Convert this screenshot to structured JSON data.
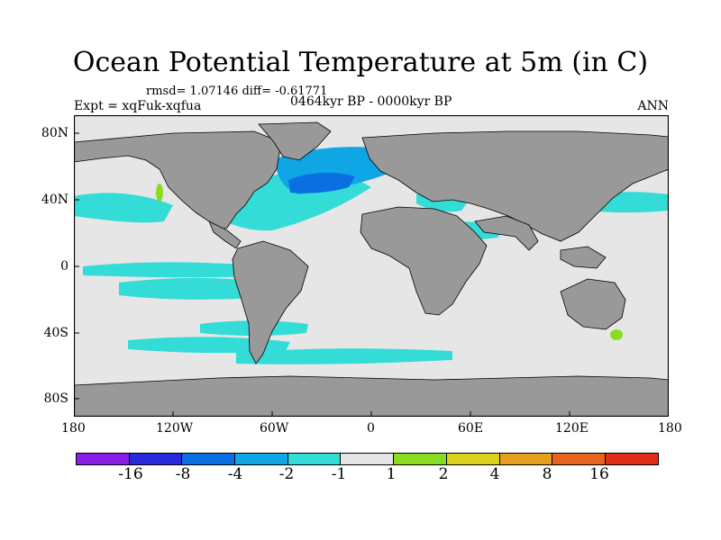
{
  "title": "Ocean Potential Temperature at 5m (in C)",
  "stats": "rmsd= 1.07146  diff= -0.61771",
  "experiment": "Expt = xqFuk-xqfua",
  "period": "0464kyr BP - 0000kyr BP",
  "season": "ANN",
  "axes": {
    "x_ticks": [
      "180",
      "120W",
      "60W",
      "0",
      "60E",
      "120E",
      "180"
    ],
    "y_ticks": [
      "80N",
      "40N",
      "0",
      "40S",
      "80S"
    ]
  },
  "colors": {
    "land": "#999999",
    "near_zero": "#e6e6e6",
    "ocean_cooling_light": "#33dcd6",
    "ocean_cooling_mid": "#0fa6e6",
    "ocean_cooling_strong": "#0a6fe0",
    "warming_light": "#88dd22"
  },
  "colorbar": {
    "labels": [
      "-16",
      "-8",
      "-4",
      "-2",
      "-1",
      "1",
      "2",
      "4",
      "8",
      "16"
    ],
    "colors": [
      "#8a1ee6",
      "#2a2add",
      "#0a6fe0",
      "#0fa6e6",
      "#33dcd6",
      "#e6e6e6",
      "#88dd22",
      "#dcd21e",
      "#e6a01e",
      "#e6641e",
      "#e02d14"
    ]
  }
}
